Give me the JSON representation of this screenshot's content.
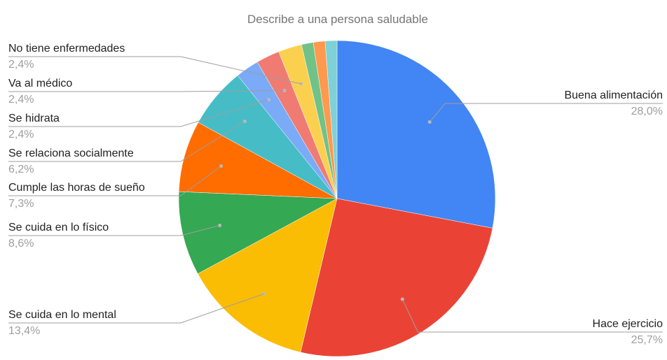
{
  "chart_data": {
    "type": "pie",
    "title": "Describe a una persona saludable",
    "start_angle_deg": 0,
    "direction": "clockwise",
    "slices": [
      {
        "label": "Buena alimentación",
        "value": 28.0,
        "pct_text": "28,0%",
        "color": "#4285f4"
      },
      {
        "label": "Hace ejercicio",
        "value": 25.7,
        "pct_text": "25,7%",
        "color": "#ea4335"
      },
      {
        "label": "Se cuida en lo mental",
        "value": 13.4,
        "pct_text": "13,4%",
        "color": "#fbbc04"
      },
      {
        "label": "Se cuida en lo físico",
        "value": 8.6,
        "pct_text": "8,6%",
        "color": "#34a853"
      },
      {
        "label": "Cumple las horas de sueño",
        "value": 7.3,
        "pct_text": "7,3%",
        "color": "#ff6d01"
      },
      {
        "label": "Se relaciona socialmente",
        "value": 6.2,
        "pct_text": "6,2%",
        "color": "#46bdc6"
      },
      {
        "label": "Se hidrata",
        "value": 2.4,
        "pct_text": "2,4%",
        "color": "#7baaf7"
      },
      {
        "label": "Va al médico",
        "value": 2.4,
        "pct_text": "2,4%",
        "color": "#f07b72"
      },
      {
        "label": "No tiene enfermedades",
        "value": 2.4,
        "pct_text": "2,4%",
        "color": "#fcd04f"
      },
      {
        "label": "",
        "value": 1.2,
        "pct_text": "",
        "color": "#71c287"
      },
      {
        "label": "",
        "value": 1.2,
        "pct_text": "",
        "color": "#ff994d"
      },
      {
        "label": "",
        "value": 1.2,
        "pct_text": "",
        "color": "#7ed1d7"
      }
    ]
  }
}
